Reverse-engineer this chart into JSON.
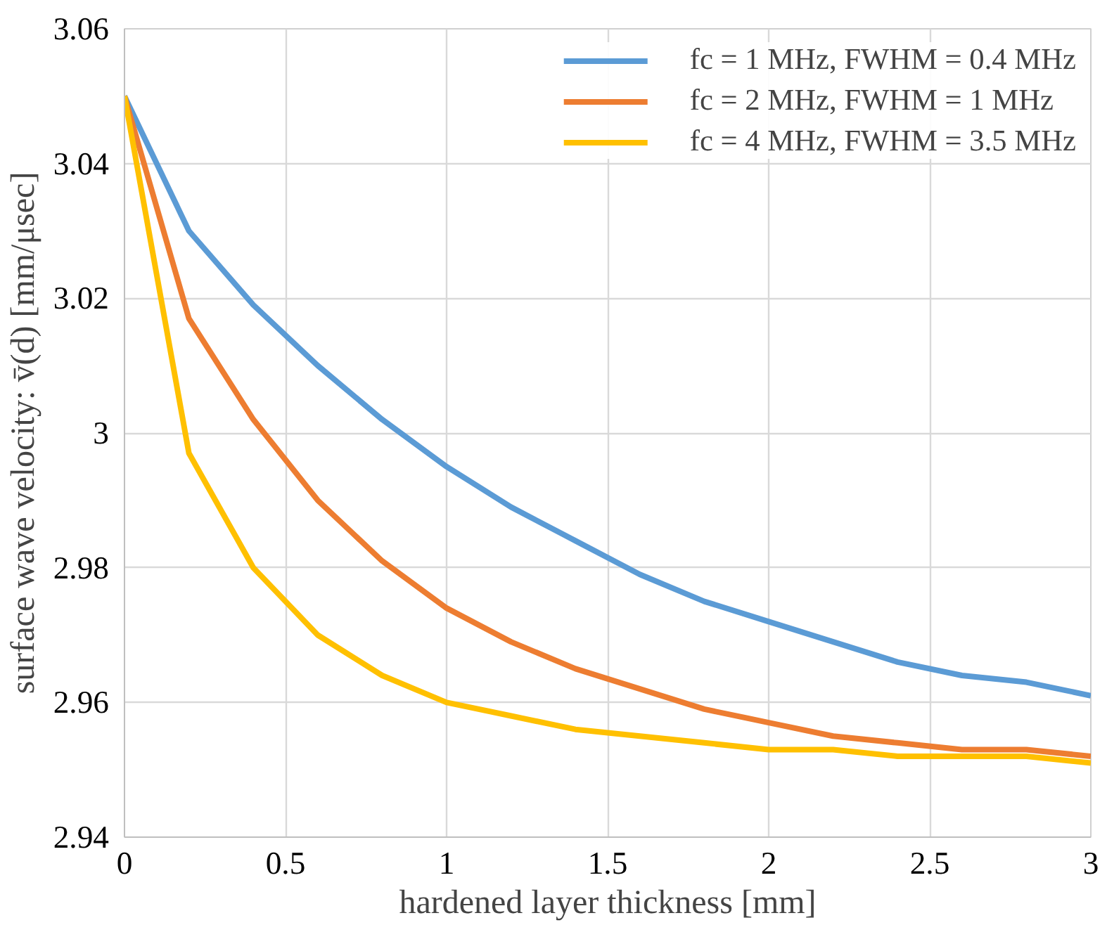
{
  "chart_data": {
    "type": "line",
    "xlabel": "hardened layer thickness [mm]",
    "ylabel": "surface wave velocity: v̄(d) [mm/μsec]",
    "x": [
      0,
      0.2,
      0.4,
      0.6,
      0.8,
      1.0,
      1.2,
      1.4,
      1.6,
      1.8,
      2.0,
      2.2,
      2.4,
      2.6,
      2.8,
      3.0
    ],
    "series": [
      {
        "name": "fc = 1 MHz, FWHM = 0.4 MHz",
        "color": "#5b9bd5",
        "values": [
          3.05,
          3.03,
          3.019,
          3.01,
          3.002,
          2.995,
          2.989,
          2.984,
          2.979,
          2.975,
          2.972,
          2.969,
          2.966,
          2.964,
          2.963,
          2.961
        ]
      },
      {
        "name": "fc = 2 MHz, FWHM = 1 MHz",
        "color": "#ed7d31",
        "values": [
          3.05,
          3.017,
          3.002,
          2.99,
          2.981,
          2.974,
          2.969,
          2.965,
          2.962,
          2.959,
          2.957,
          2.955,
          2.954,
          2.953,
          2.953,
          2.952
        ]
      },
      {
        "name": "fc = 4 MHz, FWHM = 3.5 MHz",
        "color": "#ffc000",
        "values": [
          3.05,
          2.997,
          2.98,
          2.97,
          2.964,
          2.96,
          2.958,
          2.956,
          2.955,
          2.954,
          2.953,
          2.953,
          2.952,
          2.952,
          2.952,
          2.951
        ]
      }
    ],
    "xlim": [
      0,
      3
    ],
    "xticks": [
      0,
      0.5,
      1,
      1.5,
      2,
      2.5,
      3
    ],
    "ylim": [
      2.94,
      3.06
    ],
    "yticks": [
      2.94,
      2.96,
      2.98,
      3,
      3.02,
      3.04,
      3.06
    ],
    "grid": true,
    "legend": "top right",
    "marker": "none",
    "line_style": "solid"
  }
}
